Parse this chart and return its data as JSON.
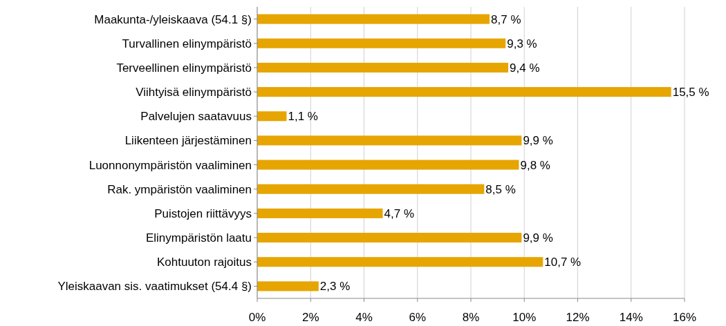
{
  "chart_data": {
    "type": "bar",
    "orientation": "horizontal",
    "categories": [
      "Maakunta-/yleiskaava (54.1 §)",
      "Turvallinen elinympäristö",
      "Terveellinen elinympäristö",
      "Viihtyisä elinympäristö",
      "Palvelujen saatavuus",
      "Liikenteen järjestäminen",
      "Luonnonympäristön vaaliminen",
      "Rak. ympäristön vaaliminen",
      "Puistojen riittävyys",
      "Elinympäristön laatu",
      "Kohtuuton rajoitus",
      "Yleiskaavan sis. vaatimukset (54.4 §)"
    ],
    "values": [
      8.7,
      9.3,
      9.4,
      15.5,
      1.1,
      9.9,
      9.8,
      8.5,
      4.7,
      9.9,
      10.7,
      2.3
    ],
    "value_labels": [
      "8,7 %",
      "9,3 %",
      "9,4 %",
      "15,5 %",
      "1,1 %",
      "9,9 %",
      "9,8 %",
      "8,5 %",
      "4,7 %",
      "9,9 %",
      "10,7 %",
      "2,3 %"
    ],
    "color": "#e6a500",
    "xlim": [
      0,
      16
    ],
    "xticks": [
      {
        "value": 0,
        "label": "0%"
      },
      {
        "value": 2,
        "label": "2%"
      },
      {
        "value": 4,
        "label": "4%"
      },
      {
        "value": 6,
        "label": "6%"
      },
      {
        "value": 8,
        "label": "8%"
      },
      {
        "value": 10,
        "label": "10%"
      },
      {
        "value": 12,
        "label": "12%"
      },
      {
        "value": 14,
        "label": "14%"
      },
      {
        "value": 16,
        "label": "16%"
      }
    ],
    "grid": "x"
  }
}
